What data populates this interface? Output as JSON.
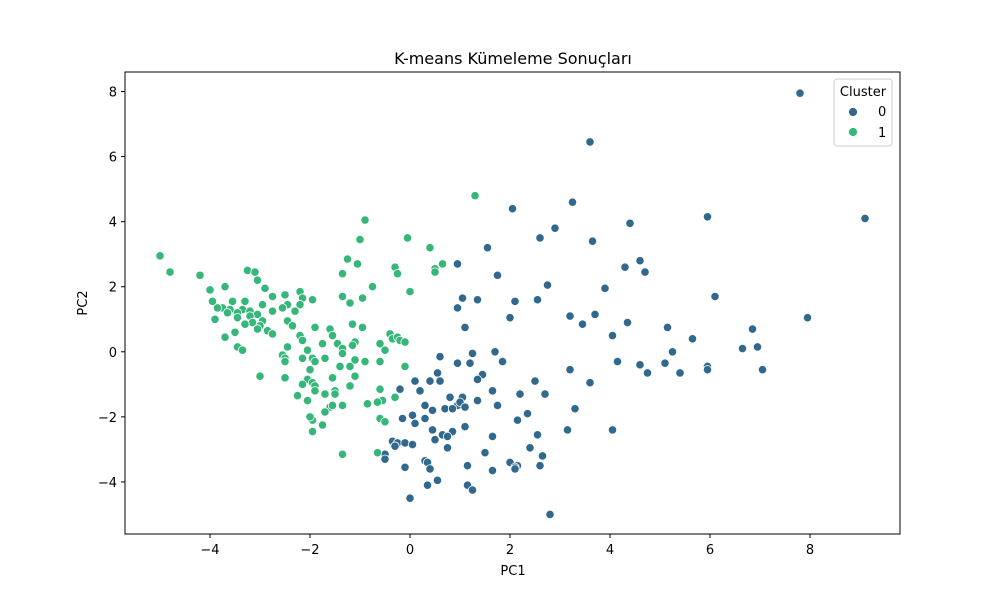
{
  "chart_data": {
    "type": "scatter",
    "title": "K-means Kümeleme Sonuçları",
    "xlabel": "PC1",
    "ylabel": "PC2",
    "xlim": [
      -5.7,
      9.8
    ],
    "ylim": [
      -5.6,
      8.6
    ],
    "x_ticks": [
      -4,
      -2,
      0,
      2,
      4,
      6,
      8
    ],
    "y_ticks": [
      -4,
      -2,
      0,
      2,
      4,
      6,
      8
    ],
    "x_tick_labels": [
      "−4",
      "−2",
      "0",
      "2",
      "4",
      "6",
      "8"
    ],
    "y_tick_labels": [
      "−4",
      "−2",
      "0",
      "2",
      "4",
      "6",
      "8"
    ],
    "grid": false,
    "legend": {
      "title": "Cluster",
      "placement": "top-right"
    },
    "series": [
      {
        "name": "0",
        "color": "#31688e",
        "points": [
          [
            7.8,
            7.95
          ],
          [
            3.6,
            6.45
          ],
          [
            9.1,
            4.1
          ],
          [
            5.95,
            4.15
          ],
          [
            3.25,
            4.6
          ],
          [
            2.05,
            4.4
          ],
          [
            4.4,
            3.95
          ],
          [
            2.9,
            3.8
          ],
          [
            2.6,
            3.5
          ],
          [
            3.65,
            3.4
          ],
          [
            1.55,
            3.2
          ],
          [
            4.6,
            2.8
          ],
          [
            0.95,
            2.7
          ],
          [
            4.3,
            2.6
          ],
          [
            4.7,
            2.45
          ],
          [
            1.75,
            2.35
          ],
          [
            2.75,
            2.05
          ],
          [
            3.9,
            1.95
          ],
          [
            6.1,
            1.7
          ],
          [
            1.05,
            1.65
          ],
          [
            1.35,
            1.6
          ],
          [
            2.1,
            1.55
          ],
          [
            2.55,
            1.6
          ],
          [
            0.95,
            1.35
          ],
          [
            2.0,
            1.05
          ],
          [
            3.2,
            1.1
          ],
          [
            3.7,
            1.15
          ],
          [
            7.95,
            1.05
          ],
          [
            3.45,
            0.85
          ],
          [
            4.35,
            0.9
          ],
          [
            5.15,
            0.75
          ],
          [
            1.1,
            0.75
          ],
          [
            6.85,
            0.7
          ],
          [
            4.05,
            0.5
          ],
          [
            5.65,
            0.4
          ],
          [
            6.95,
            0.15
          ],
          [
            6.65,
            0.1
          ],
          [
            5.25,
            0.0
          ],
          [
            1.7,
            0.0
          ],
          [
            1.25,
            -0.05
          ],
          [
            4.15,
            -0.3
          ],
          [
            5.1,
            -0.35
          ],
          [
            0.6,
            -0.15
          ],
          [
            1.2,
            -0.35
          ],
          [
            0.95,
            -0.35
          ],
          [
            1.85,
            -0.3
          ],
          [
            4.6,
            -0.4
          ],
          [
            5.95,
            -0.45
          ],
          [
            5.95,
            -0.55
          ],
          [
            7.05,
            -0.55
          ],
          [
            4.75,
            -0.65
          ],
          [
            5.4,
            -0.65
          ],
          [
            0.55,
            -0.65
          ],
          [
            1.45,
            -0.7
          ],
          [
            3.2,
            -0.55
          ],
          [
            1.35,
            -0.85
          ],
          [
            0.6,
            -0.9
          ],
          [
            0.1,
            -0.9
          ],
          [
            0.4,
            -0.9
          ],
          [
            2.5,
            -0.9
          ],
          [
            3.6,
            -0.95
          ],
          [
            0.2,
            -1.2
          ],
          [
            -0.2,
            -1.15
          ],
          [
            1.65,
            -1.2
          ],
          [
            2.2,
            -1.3
          ],
          [
            0.8,
            -1.4
          ],
          [
            1.05,
            -1.4
          ],
          [
            2.7,
            -1.3
          ],
          [
            1.35,
            -1.5
          ],
          [
            1.75,
            -1.65
          ],
          [
            0.7,
            -1.75
          ],
          [
            0.95,
            -1.65
          ],
          [
            1.0,
            -1.55
          ],
          [
            0.85,
            -1.75
          ],
          [
            1.1,
            -1.7
          ],
          [
            0.3,
            -1.65
          ],
          [
            0.45,
            -1.8
          ],
          [
            3.3,
            -1.75
          ],
          [
            0.05,
            -1.95
          ],
          [
            0.3,
            -2.05
          ],
          [
            -0.15,
            -2.05
          ],
          [
            2.35,
            -1.9
          ],
          [
            2.15,
            -2.1
          ],
          [
            0.1,
            -2.2
          ],
          [
            1.1,
            -2.3
          ],
          [
            0.45,
            -2.4
          ],
          [
            3.15,
            -2.4
          ],
          [
            4.05,
            -2.4
          ],
          [
            0.85,
            -2.45
          ],
          [
            1.65,
            -2.6
          ],
          [
            0.65,
            -2.55
          ],
          [
            0.75,
            -2.6
          ],
          [
            2.55,
            -2.55
          ],
          [
            0.5,
            -2.7
          ],
          [
            -0.35,
            -2.75
          ],
          [
            -0.25,
            -2.8
          ],
          [
            -0.1,
            -2.8
          ],
          [
            0.05,
            -2.85
          ],
          [
            -0.3,
            -2.9
          ],
          [
            0.75,
            -2.95
          ],
          [
            1.5,
            -3.1
          ],
          [
            2.4,
            -2.95
          ],
          [
            -0.5,
            -3.15
          ],
          [
            2.65,
            -3.2
          ],
          [
            0.3,
            -3.35
          ],
          [
            -0.5,
            -3.3
          ],
          [
            0.35,
            -3.4
          ],
          [
            2.0,
            -3.4
          ],
          [
            2.15,
            -3.5
          ],
          [
            2.1,
            -3.55
          ],
          [
            2.6,
            -3.5
          ],
          [
            -0.1,
            -3.55
          ],
          [
            1.15,
            -3.5
          ],
          [
            2.1,
            -3.6
          ],
          [
            0.4,
            -3.6
          ],
          [
            1.65,
            -3.65
          ],
          [
            0.55,
            -3.95
          ],
          [
            0.35,
            -4.1
          ],
          [
            1.15,
            -4.1
          ],
          [
            1.25,
            -4.25
          ],
          [
            0.0,
            -4.5
          ],
          [
            2.8,
            -5.0
          ]
        ]
      },
      {
        "name": "1",
        "color": "#35b779",
        "points": [
          [
            1.3,
            4.8
          ],
          [
            -0.9,
            4.05
          ],
          [
            -1.0,
            3.45
          ],
          [
            -0.05,
            3.5
          ],
          [
            0.4,
            3.2
          ],
          [
            -5.0,
            2.95
          ],
          [
            -1.25,
            2.85
          ],
          [
            -1.05,
            2.7
          ],
          [
            0.65,
            2.7
          ],
          [
            -0.3,
            2.6
          ],
          [
            0.5,
            2.55
          ],
          [
            -4.8,
            2.45
          ],
          [
            -3.25,
            2.5
          ],
          [
            -3.1,
            2.45
          ],
          [
            -1.35,
            2.4
          ],
          [
            0.5,
            2.45
          ],
          [
            -4.2,
            2.35
          ],
          [
            -0.25,
            2.4
          ],
          [
            -3.05,
            2.2
          ],
          [
            -3.7,
            2.0
          ],
          [
            -2.9,
            1.95
          ],
          [
            -0.75,
            2.0
          ],
          [
            -4.0,
            1.9
          ],
          [
            -2.2,
            1.85
          ],
          [
            0.0,
            1.85
          ],
          [
            -2.5,
            1.75
          ],
          [
            -2.75,
            1.7
          ],
          [
            -2.15,
            1.65
          ],
          [
            -1.35,
            1.7
          ],
          [
            -0.95,
            1.65
          ],
          [
            -3.95,
            1.55
          ],
          [
            -3.55,
            1.55
          ],
          [
            -3.3,
            1.55
          ],
          [
            -2.45,
            1.45
          ],
          [
            -2.95,
            1.45
          ],
          [
            -2.2,
            1.45
          ],
          [
            -1.95,
            1.6
          ],
          [
            -1.2,
            1.5
          ],
          [
            -3.75,
            1.35
          ],
          [
            -3.85,
            1.35
          ],
          [
            -3.6,
            1.3
          ],
          [
            -3.35,
            1.3
          ],
          [
            -3.2,
            1.25
          ],
          [
            -2.55,
            1.35
          ],
          [
            -3.45,
            1.2
          ],
          [
            -3.05,
            1.15
          ],
          [
            -2.75,
            1.25
          ],
          [
            -2.3,
            1.25
          ],
          [
            -3.65,
            1.2
          ],
          [
            -3.2,
            1.1
          ],
          [
            -3.45,
            1.05
          ],
          [
            -3.9,
            1.0
          ],
          [
            -3.15,
            0.9
          ],
          [
            -2.95,
            0.95
          ],
          [
            -2.45,
            0.95
          ],
          [
            -3.3,
            0.85
          ],
          [
            -3.0,
            0.8
          ],
          [
            -2.35,
            0.8
          ],
          [
            -1.9,
            0.75
          ],
          [
            -1.6,
            0.7
          ],
          [
            -1.15,
            0.85
          ],
          [
            -0.95,
            0.75
          ],
          [
            -3.05,
            0.7
          ],
          [
            -2.85,
            0.65
          ],
          [
            -3.5,
            0.6
          ],
          [
            -2.75,
            0.55
          ],
          [
            -1.55,
            0.5
          ],
          [
            -0.4,
            0.55
          ],
          [
            -0.35,
            0.4
          ],
          [
            -0.25,
            0.45
          ],
          [
            -2.2,
            0.5
          ],
          [
            -3.7,
            0.45
          ],
          [
            -2.15,
            0.35
          ],
          [
            -1.75,
            0.25
          ],
          [
            -1.45,
            0.25
          ],
          [
            -1.1,
            0.3
          ],
          [
            -0.6,
            0.25
          ],
          [
            -1.15,
            0.2
          ],
          [
            -0.2,
            0.35
          ],
          [
            -0.1,
            0.3
          ],
          [
            -3.45,
            0.15
          ],
          [
            -2.45,
            0.15
          ],
          [
            -1.35,
            0.1
          ],
          [
            -0.5,
            0.05
          ],
          [
            -3.35,
            0.05
          ],
          [
            -2.05,
            0.05
          ],
          [
            -1.35,
            -0.05
          ],
          [
            -2.55,
            -0.1
          ],
          [
            -2.5,
            -0.2
          ],
          [
            -1.95,
            -0.2
          ],
          [
            -1.9,
            -0.3
          ],
          [
            -2.15,
            -0.2
          ],
          [
            -2.5,
            -0.3
          ],
          [
            -1.7,
            -0.2
          ],
          [
            -1.1,
            -0.25
          ],
          [
            -0.9,
            -0.3
          ],
          [
            -0.6,
            -0.3
          ],
          [
            -0.1,
            -0.45
          ],
          [
            -1.4,
            -0.45
          ],
          [
            -1.2,
            -0.45
          ],
          [
            -2.0,
            -0.55
          ],
          [
            -1.1,
            -0.75
          ],
          [
            -3.0,
            -0.75
          ],
          [
            -2.5,
            -0.8
          ],
          [
            -1.55,
            -0.8
          ],
          [
            -2.05,
            -0.85
          ],
          [
            -1.95,
            -0.95
          ],
          [
            -1.9,
            -1.05
          ],
          [
            -2.15,
            -1.0
          ],
          [
            -1.9,
            -1.2
          ],
          [
            -1.2,
            -1.05
          ],
          [
            -1.5,
            -1.2
          ],
          [
            -0.6,
            -1.15
          ],
          [
            -1.5,
            -1.3
          ],
          [
            -1.7,
            -1.3
          ],
          [
            -2.25,
            -1.35
          ],
          [
            -2.05,
            -1.5
          ],
          [
            -0.3,
            -1.4
          ],
          [
            -0.55,
            -1.5
          ],
          [
            -0.65,
            -1.55
          ],
          [
            -0.85,
            -1.6
          ],
          [
            -1.6,
            -1.7
          ],
          [
            -1.55,
            -1.65
          ],
          [
            -1.7,
            -1.85
          ],
          [
            -1.35,
            -1.65
          ],
          [
            -1.95,
            -2.1
          ],
          [
            -2.0,
            -2.0
          ],
          [
            -0.6,
            -2.05
          ],
          [
            -0.5,
            -2.15
          ],
          [
            -1.75,
            -2.25
          ],
          [
            -1.95,
            -2.45
          ],
          [
            -1.35,
            -3.15
          ],
          [
            -0.65,
            -3.1
          ]
        ]
      }
    ]
  }
}
